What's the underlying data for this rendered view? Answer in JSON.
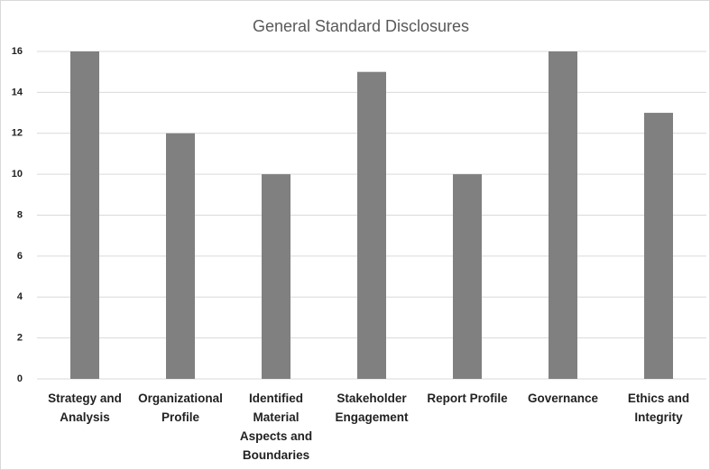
{
  "chart_data": {
    "type": "bar",
    "title": "General Standard Disclosures",
    "categories": [
      "Strategy and Analysis",
      "Organizational Profile",
      "Identified Material Aspects and Boundaries",
      "Stakeholder Engagement",
      "Report Profile",
      "Governance",
      "Ethics and Integrity"
    ],
    "values": [
      16,
      12,
      10,
      15,
      10,
      16,
      13
    ],
    "color": "#808080",
    "ylim": [
      0,
      16
    ],
    "yticks": [
      0,
      2,
      4,
      6,
      8,
      10,
      12,
      14,
      16
    ],
    "grid": true
  }
}
